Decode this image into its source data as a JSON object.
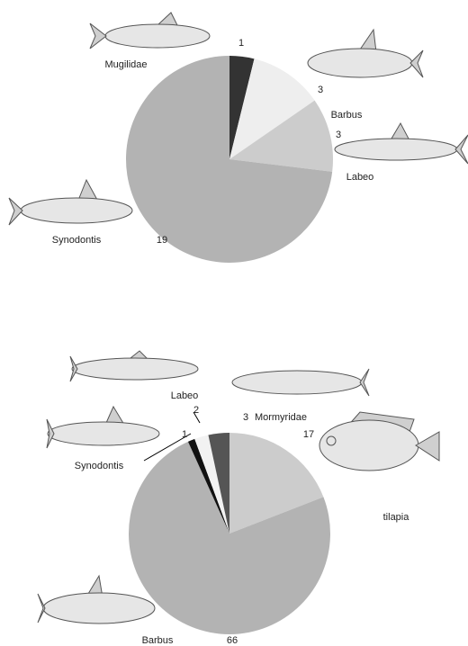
{
  "chart_data": [
    {
      "type": "pie",
      "categories": [
        "Mugilidae",
        "Barbus",
        "Labeo",
        "Synodontis"
      ],
      "values": [
        1,
        3,
        3,
        19
      ],
      "colors": [
        "#333333",
        "#eeeeee",
        "#cccccc",
        "#b3b3b3"
      ]
    },
    {
      "type": "pie",
      "categories": [
        "tilapia",
        "Barbus",
        "Synodontis",
        "Labeo",
        "Mormyridae"
      ],
      "values": [
        17,
        66,
        1,
        2,
        3
      ],
      "colors": [
        "#cccccc",
        "#b3b3b3",
        "#111111",
        "#f2f2f2",
        "#555555"
      ]
    }
  ]
}
